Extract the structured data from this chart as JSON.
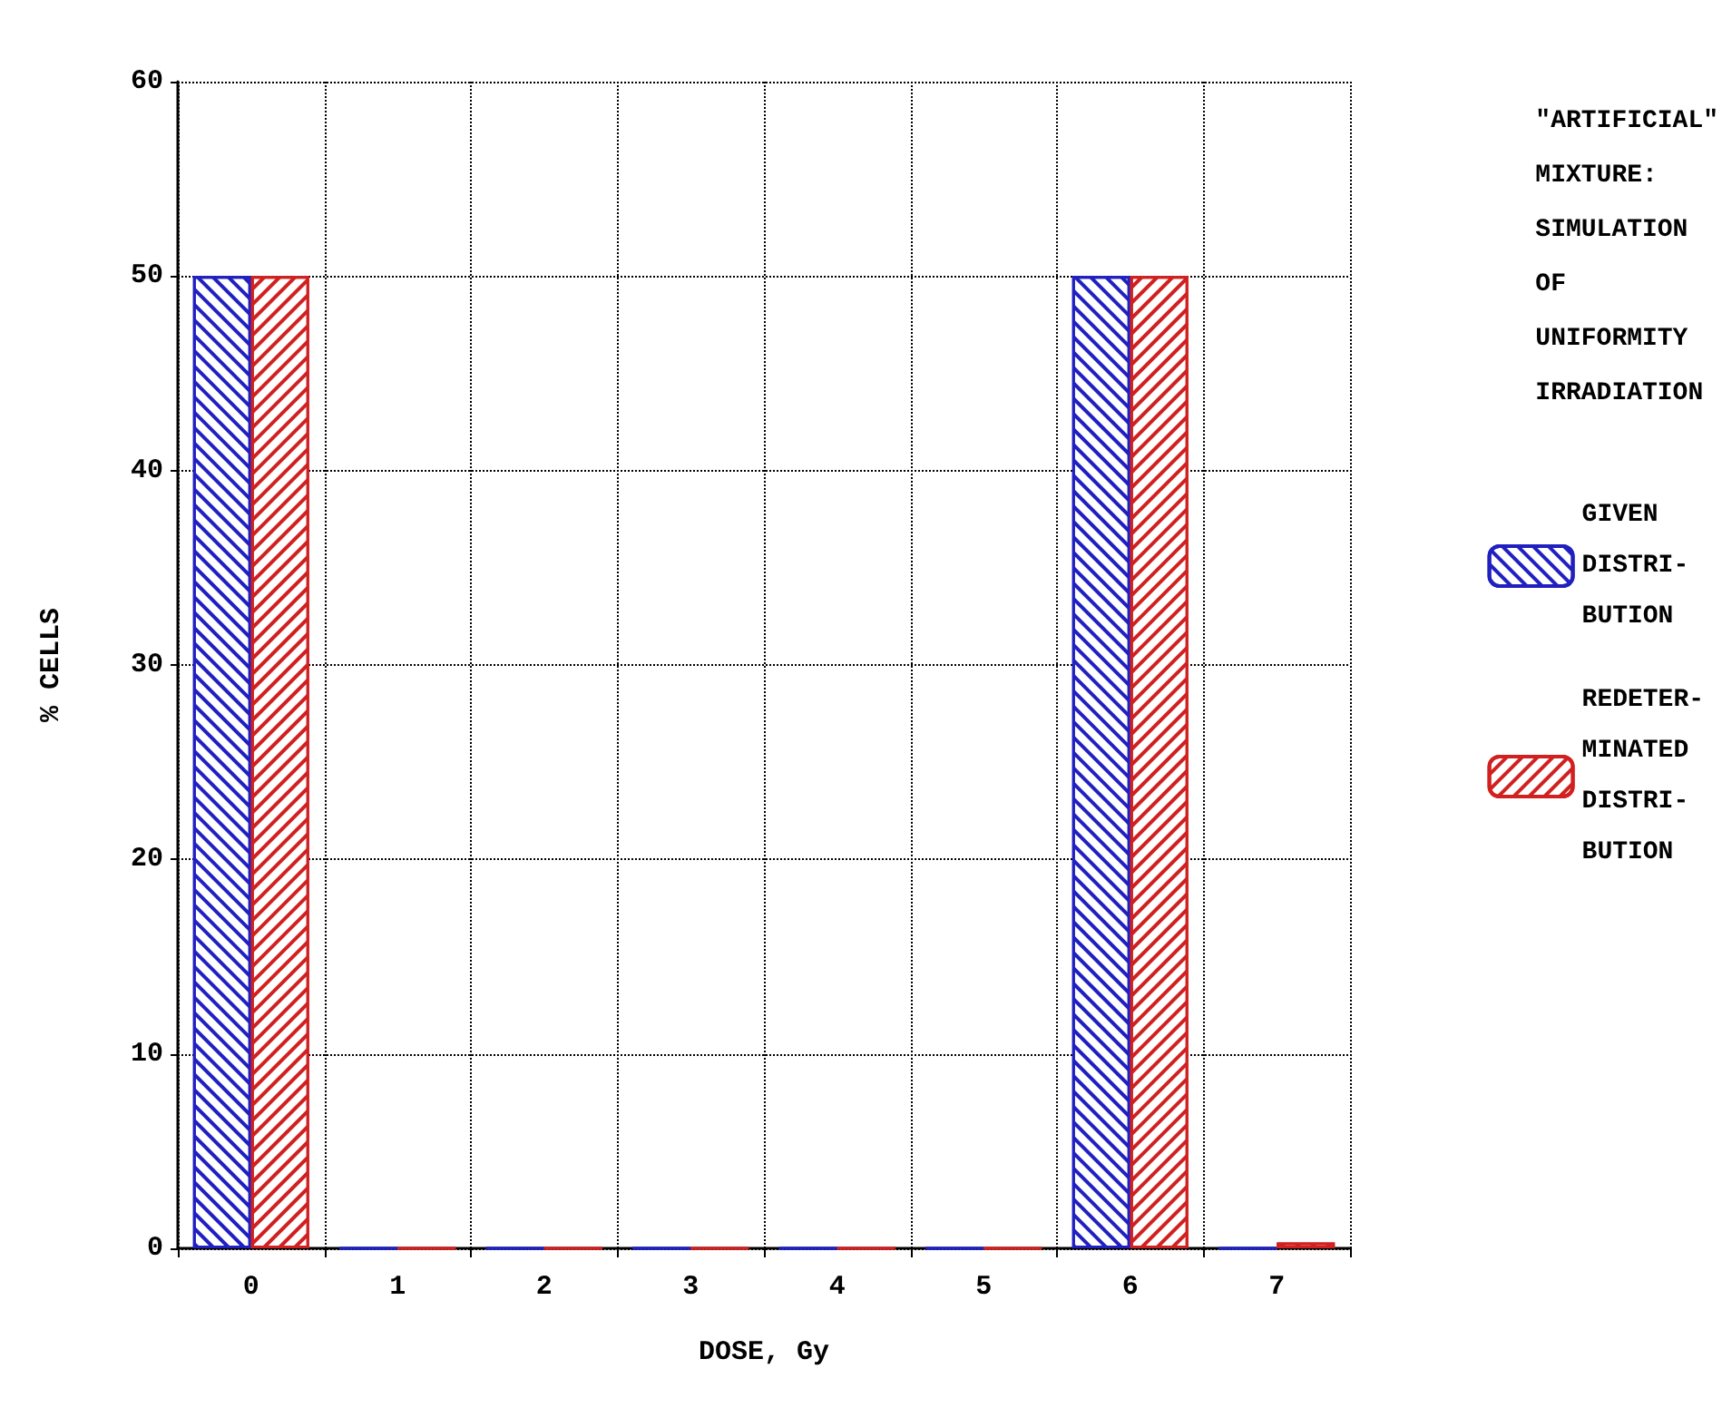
{
  "chart_data": {
    "type": "bar",
    "xlabel": "DOSE, Gy",
    "ylabel": "% CELLS",
    "legend_title": "\"ARTIFICIAL\" MIXTURE: SIMULATION OF UNIFORMITY IRRADIATION",
    "categories": [
      "0",
      "1",
      "2",
      "3",
      "4",
      "5",
      "6",
      "7"
    ],
    "series": [
      {
        "name": "GIVEN DISTRI-BUTION",
        "color": "#2020c0",
        "values": [
          50,
          0,
          0,
          0,
          0,
          0,
          50,
          0
        ]
      },
      {
        "name": "REDETER-MINATED DISTRI-BUTION",
        "color": "#d02020",
        "values": [
          50,
          0,
          0,
          0,
          0,
          0,
          50,
          0.3
        ]
      }
    ],
    "ylim": [
      0,
      60
    ],
    "yticks": [
      0,
      10,
      20,
      30,
      40,
      50,
      60
    ],
    "grid": true,
    "legend": "right"
  }
}
